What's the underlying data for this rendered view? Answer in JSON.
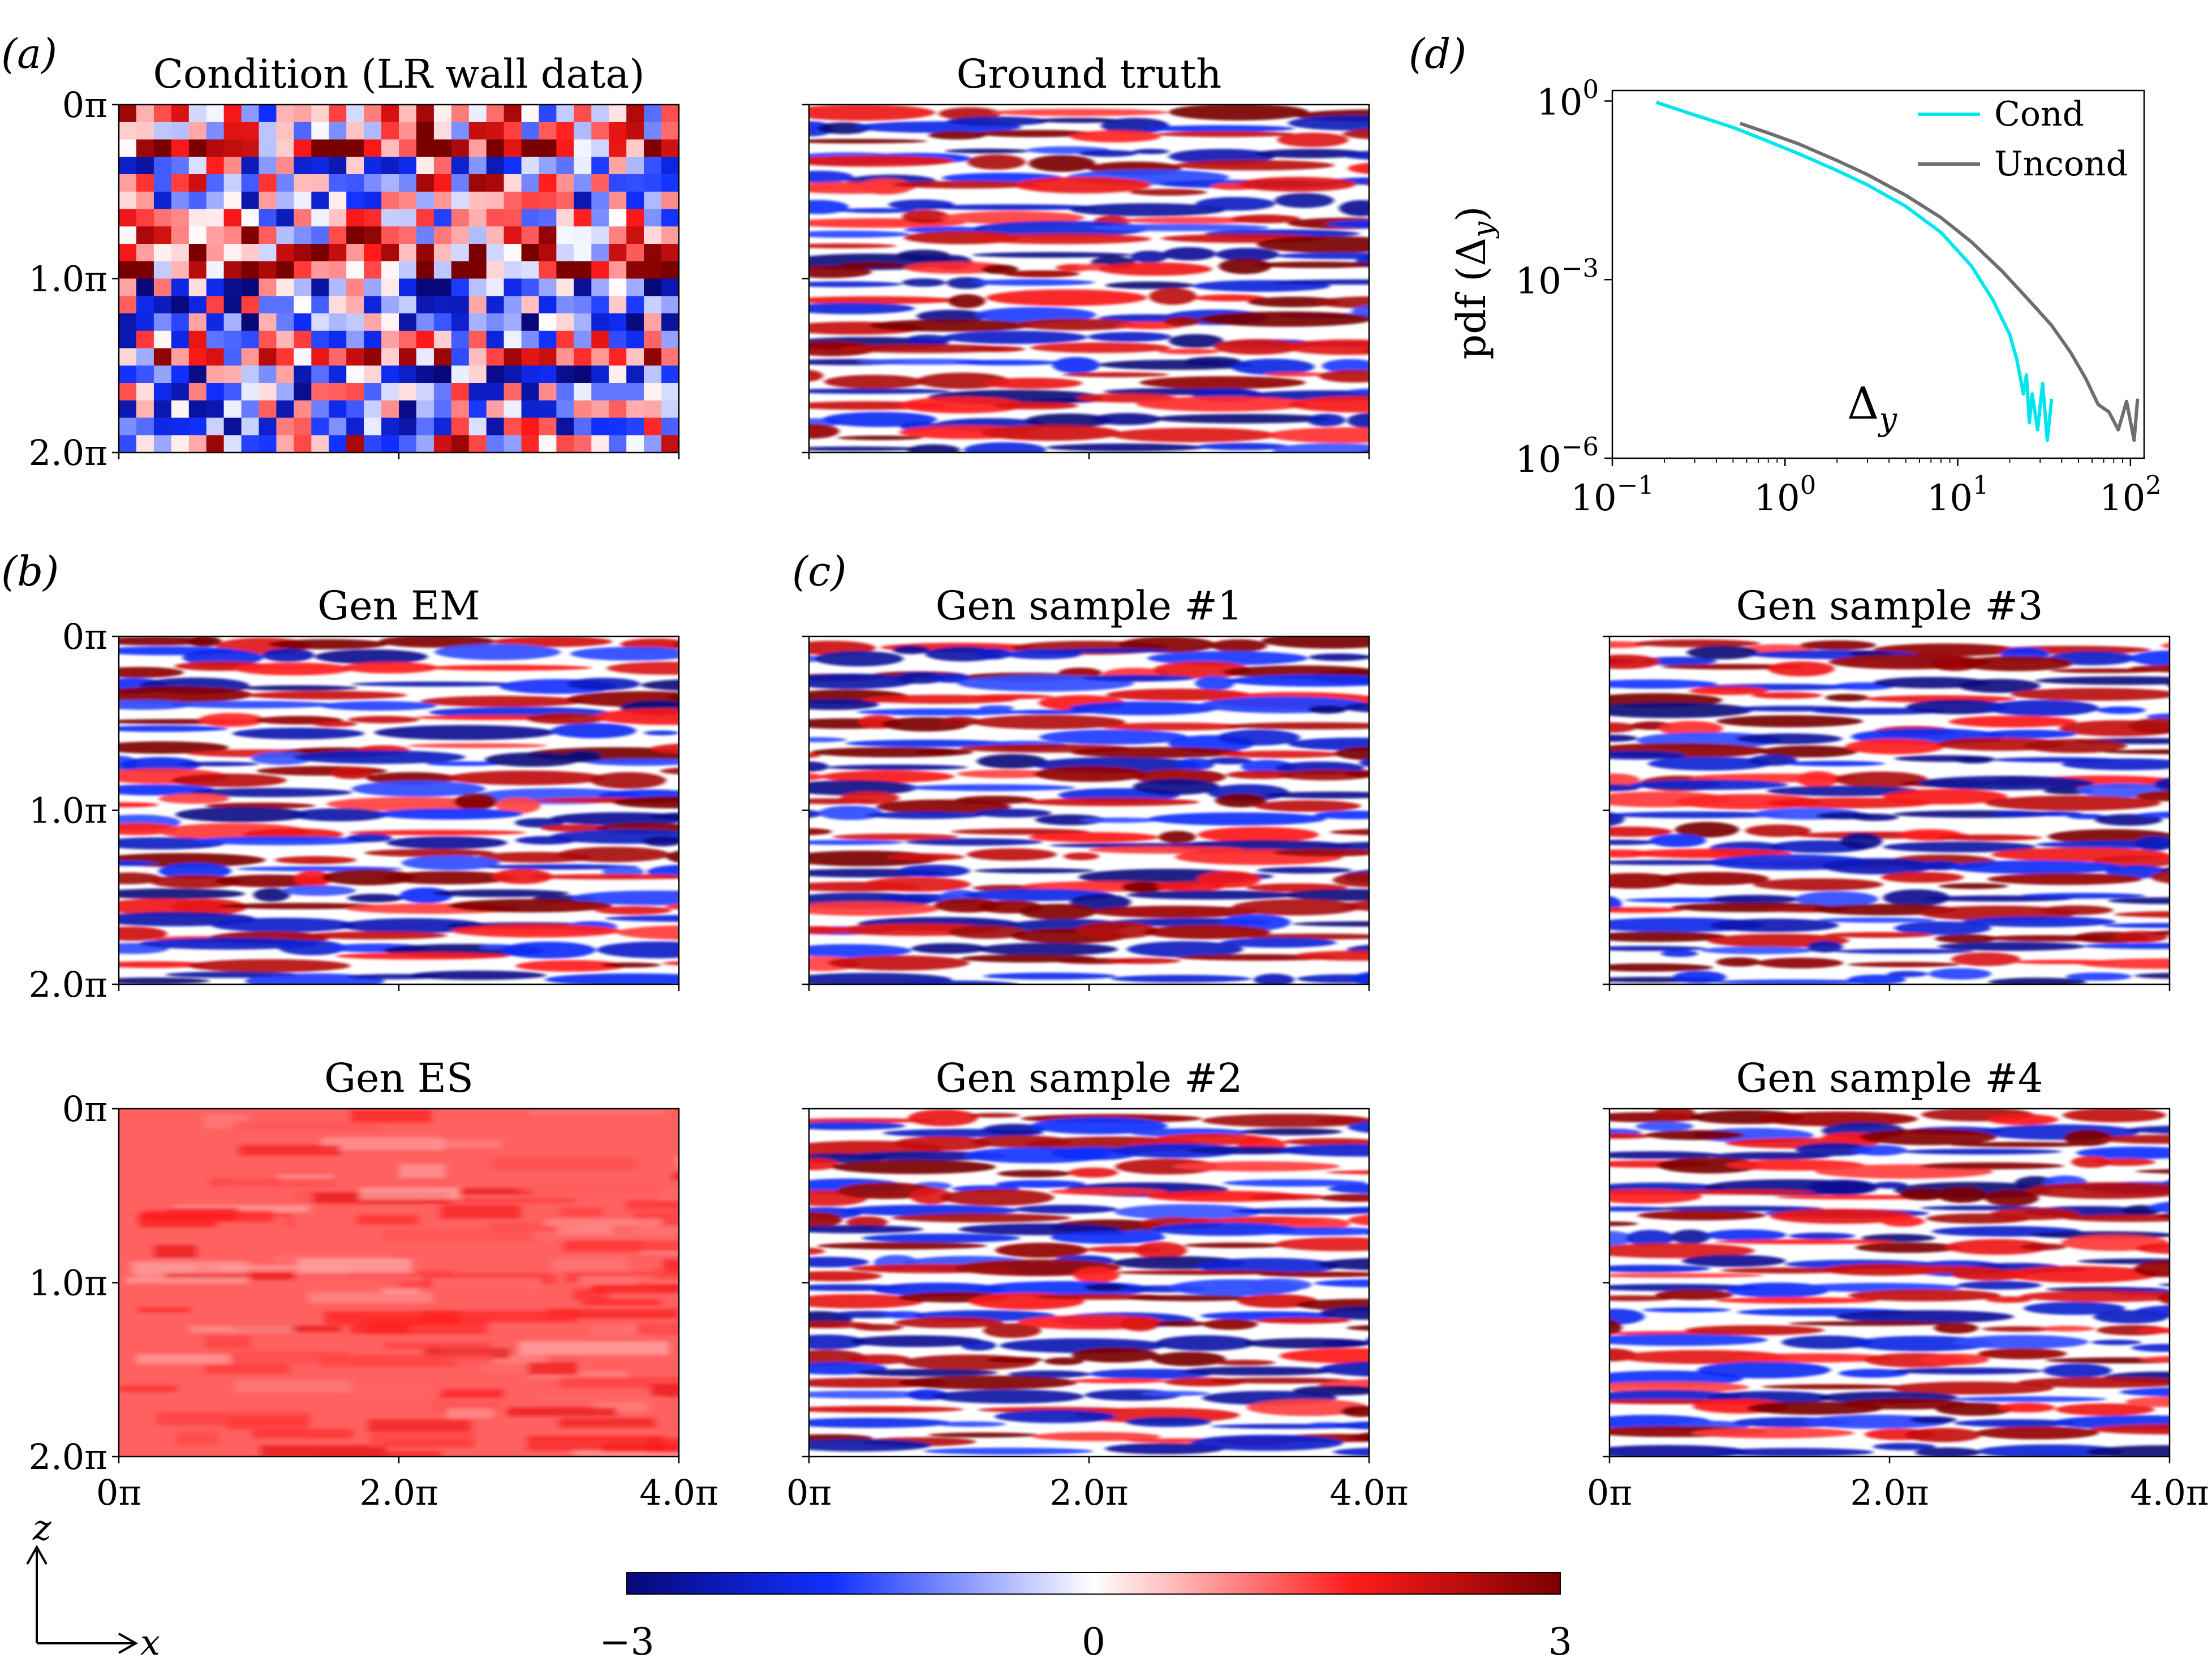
{
  "panel_letters": [
    "(a)",
    "(b)",
    "(c)",
    "(d)"
  ],
  "colorbar": {
    "min_label": "−3",
    "mid_label": "0",
    "max_label": "3",
    "min": -3,
    "max": 3,
    "colors": [
      "#08087a",
      "#1030ff",
      "#ffffff",
      "#ff1a1a",
      "#7a0000"
    ]
  },
  "axes": {
    "z_ticks": [
      "0π",
      "1.0π",
      "2.0π"
    ],
    "x_ticks": [
      "0π",
      "2.0π",
      "4.0π"
    ],
    "z_label": "z",
    "x_label": "x"
  },
  "fields": [
    {
      "id": "cond",
      "title": "Condition (LR wall data)",
      "kind": "lowres"
    },
    {
      "id": "gt",
      "title": "Ground truth",
      "kind": "turb"
    },
    {
      "id": "em",
      "title": "Gen EM",
      "kind": "turb"
    },
    {
      "id": "s1",
      "title": "Gen sample #1",
      "kind": "turb"
    },
    {
      "id": "s3",
      "title": "Gen sample #3",
      "kind": "turb"
    },
    {
      "id": "es",
      "title": "Gen ES",
      "kind": "es"
    },
    {
      "id": "s2",
      "title": "Gen sample #2",
      "kind": "turb"
    },
    {
      "id": "s4",
      "title": "Gen sample #4",
      "kind": "turb"
    }
  ],
  "chart_data": {
    "type": "line",
    "panel": "(d)",
    "xscale": "log",
    "yscale": "log",
    "xlim": [
      0.1,
      120
    ],
    "ylim": [
      1e-06,
      1.5
    ],
    "ylabel": "pdf (Δy)",
    "annotation": "Δy",
    "x_ticks": [
      "10−1",
      "100",
      "101",
      "102"
    ],
    "y_ticks": [
      "100",
      "10−3",
      "10−6"
    ],
    "legend_position": "top-right",
    "series": [
      {
        "name": "Cond",
        "color": "#00e5ee",
        "x": [
          0.18,
          0.3,
          0.5,
          0.8,
          1.2,
          2,
          3,
          5,
          8,
          12,
          16,
          20,
          22,
          24,
          25,
          26,
          27,
          29,
          31,
          33,
          35
        ],
        "y": [
          0.95,
          0.58,
          0.36,
          0.21,
          0.13,
          0.068,
          0.039,
          0.017,
          0.0062,
          0.0017,
          0.00045,
          0.00012,
          4.5e-05,
          1.2e-05,
          2.5e-05,
          4e-06,
          1.2e-05,
          3e-06,
          1.8e-05,
          2e-06,
          1e-05
        ]
      },
      {
        "name": "Uncond",
        "color": "#6e6e6e",
        "x": [
          0.55,
          0.8,
          1.2,
          2,
          3,
          5,
          8,
          12,
          18,
          25,
          35,
          45,
          55,
          65,
          75,
          85,
          95,
          105,
          110
        ],
        "y": [
          0.42,
          0.29,
          0.19,
          0.1,
          0.058,
          0.026,
          0.011,
          0.0043,
          0.0014,
          0.0005,
          0.00017,
          6e-05,
          2.2e-05,
          8e-06,
          6e-06,
          3e-06,
          9e-06,
          2e-06,
          1e-05
        ]
      }
    ]
  }
}
